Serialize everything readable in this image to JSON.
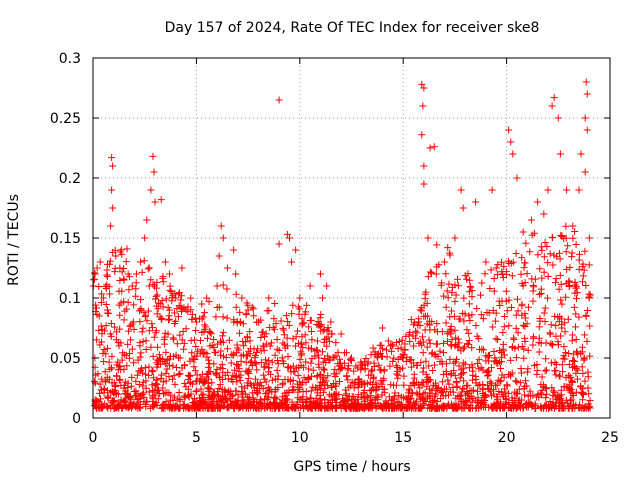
{
  "chart_data": {
    "type": "scatter",
    "title": "Day 157 of 2024, Rate Of TEC Index for receiver ske8",
    "xlabel": "GPS time / hours",
    "ylabel": "ROTI / TECUs",
    "xlim": [
      0,
      25
    ],
    "ylim": [
      0,
      0.3
    ],
    "xticks": [
      0,
      5,
      10,
      15,
      20,
      25
    ],
    "yticks": [
      0,
      0.05,
      0.1,
      0.15,
      0.2,
      0.25,
      0.3
    ],
    "xtick_labels": [
      "0",
      "5",
      "10",
      "15",
      "20",
      "25"
    ],
    "ytick_labels": [
      "0",
      "0.05",
      "0.1",
      "0.15",
      "0.2",
      "0.25",
      "0.3"
    ],
    "grid": true,
    "marker": "+",
    "color": "#ff0000",
    "series": [
      {
        "name": "ROTI",
        "points": [
          [
            0.1,
            0.12
          ],
          [
            0.2,
            0.125
          ],
          [
            0.35,
            0.13
          ],
          [
            0.5,
            0.1
          ],
          [
            0.7,
            0.09
          ],
          [
            0.85,
            0.16
          ],
          [
            0.9,
            0.217
          ],
          [
            0.95,
            0.21
          ],
          [
            0.9,
            0.19
          ],
          [
            0.95,
            0.175
          ],
          [
            1.1,
            0.135
          ],
          [
            1.3,
            0.125
          ],
          [
            1.5,
            0.115
          ],
          [
            1.7,
            0.12
          ],
          [
            1.9,
            0.11
          ],
          [
            2.1,
            0.12
          ],
          [
            2.3,
            0.13
          ],
          [
            2.5,
            0.15
          ],
          [
            2.6,
            0.165
          ],
          [
            2.8,
            0.19
          ],
          [
            2.9,
            0.218
          ],
          [
            2.95,
            0.205
          ],
          [
            3.0,
            0.18
          ],
          [
            3.3,
            0.182
          ],
          [
            3.5,
            0.13
          ],
          [
            3.7,
            0.12
          ],
          [
            4.0,
            0.1
          ],
          [
            4.3,
            0.125
          ],
          [
            4.5,
            0.09
          ],
          [
            5.0,
            0.08
          ],
          [
            5.5,
            0.1
          ],
          [
            6.0,
            0.11
          ],
          [
            6.1,
            0.135
          ],
          [
            6.2,
            0.16
          ],
          [
            6.3,
            0.15
          ],
          [
            6.5,
            0.125
          ],
          [
            6.8,
            0.14
          ],
          [
            6.9,
            0.12
          ],
          [
            7.2,
            0.1
          ],
          [
            7.5,
            0.09
          ],
          [
            8.0,
            0.08
          ],
          [
            8.5,
            0.1
          ],
          [
            9.0,
            0.265
          ],
          [
            9.0,
            0.145
          ],
          [
            9.5,
            0.15
          ],
          [
            9.4,
            0.153
          ],
          [
            9.6,
            0.13
          ],
          [
            9.8,
            0.14
          ],
          [
            10.0,
            0.1
          ],
          [
            10.5,
            0.11
          ],
          [
            11.0,
            0.12
          ],
          [
            11.3,
            0.11
          ],
          [
            11.1,
            0.1
          ],
          [
            11.5,
            0.08
          ],
          [
            12.0,
            0.07
          ],
          [
            12.5,
            0.05
          ],
          [
            13.0,
            0.045
          ],
          [
            13.5,
            0.04
          ],
          [
            14.0,
            0.075
          ],
          [
            14.5,
            0.06
          ],
          [
            15.0,
            0.05
          ],
          [
            15.5,
            0.06
          ],
          [
            15.9,
            0.278
          ],
          [
            16.0,
            0.275
          ],
          [
            15.95,
            0.26
          ],
          [
            15.9,
            0.236
          ],
          [
            16.0,
            0.21
          ],
          [
            16.0,
            0.195
          ],
          [
            16.3,
            0.225
          ],
          [
            16.5,
            0.226
          ],
          [
            16.2,
            0.15
          ],
          [
            16.6,
            0.12
          ],
          [
            17.0,
            0.13
          ],
          [
            17.5,
            0.15
          ],
          [
            17.8,
            0.19
          ],
          [
            17.9,
            0.175
          ],
          [
            18.5,
            0.18
          ],
          [
            19.0,
            0.13
          ],
          [
            19.3,
            0.19
          ],
          [
            19.8,
            0.12
          ],
          [
            20.1,
            0.24
          ],
          [
            20.2,
            0.23
          ],
          [
            20.3,
            0.22
          ],
          [
            20.5,
            0.2
          ],
          [
            20.8,
            0.155
          ],
          [
            21.2,
            0.165
          ],
          [
            21.5,
            0.18
          ],
          [
            21.8,
            0.17
          ],
          [
            22.0,
            0.19
          ],
          [
            22.2,
            0.26
          ],
          [
            22.3,
            0.267
          ],
          [
            22.5,
            0.25
          ],
          [
            22.6,
            0.22
          ],
          [
            22.9,
            0.19
          ],
          [
            23.2,
            0.16
          ],
          [
            23.5,
            0.19
          ],
          [
            23.6,
            0.22
          ],
          [
            23.8,
            0.205
          ],
          [
            23.8,
            0.25
          ],
          [
            23.9,
            0.27
          ],
          [
            23.85,
            0.28
          ],
          [
            23.9,
            0.24
          ],
          [
            24.0,
            0.15
          ],
          [
            24.0,
            0.1
          ]
        ]
      }
    ]
  }
}
